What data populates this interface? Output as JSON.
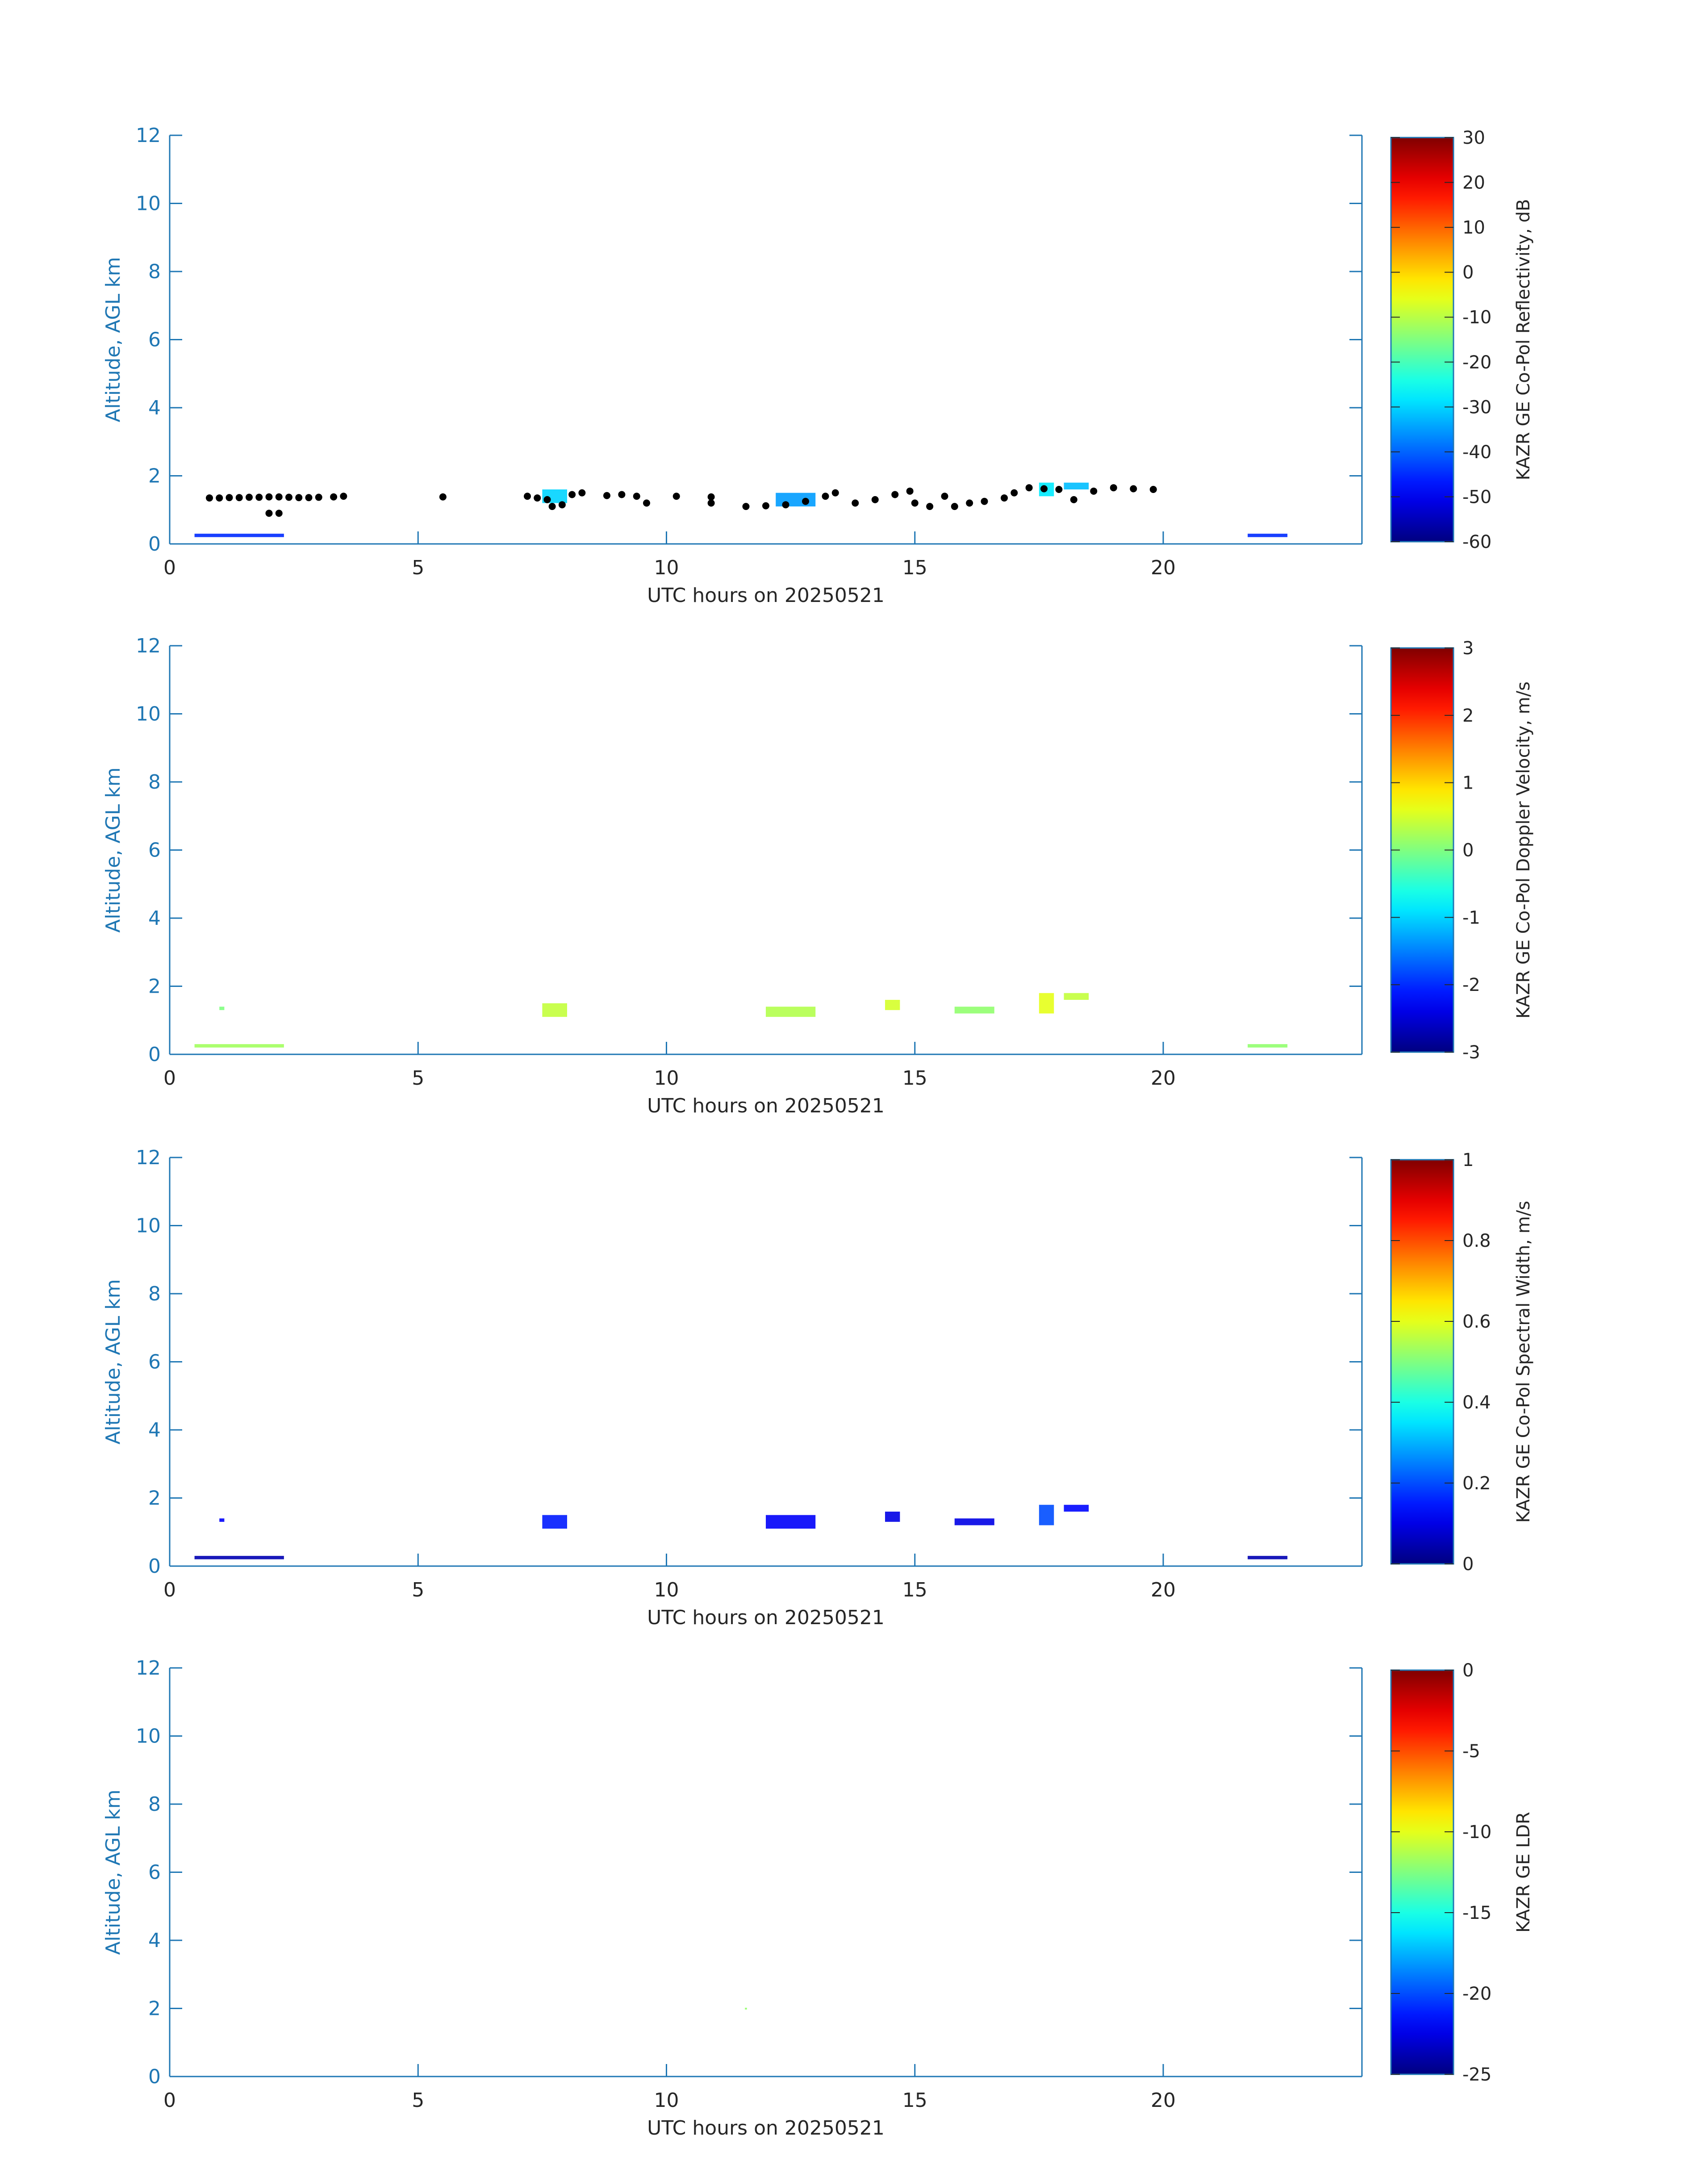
{
  "figure": {
    "xlabel": "UTC hours on 20250521",
    "ylabel": "Altitude, AGL km",
    "xlim": [
      0,
      24
    ],
    "ylim": [
      0,
      12
    ],
    "x_ticks": [
      0,
      5,
      10,
      15,
      20
    ],
    "y_ticks": [
      0,
      2,
      4,
      6,
      8,
      10,
      12
    ],
    "axis_color": "#1f77b4",
    "text_color": "#262626",
    "colormap": "jet"
  },
  "chart_data": [
    {
      "type": "heatmap",
      "xlabel": "UTC hours on 20250521",
      "ylabel": "Altitude, AGL km",
      "xlim": [
        0,
        24
      ],
      "ylim": [
        0,
        12
      ],
      "colorbar_label": "KAZR GE Co-Pol Reflectivity, dB",
      "clim": [
        -60,
        30
      ],
      "colorbar_ticks": [
        30,
        20,
        10,
        0,
        -10,
        -20,
        -30,
        -40,
        -50,
        -60
      ],
      "echoes": [
        {
          "x": [
            0.5,
            2.3
          ],
          "y": [
            0.2,
            0.3
          ],
          "value": -45
        },
        {
          "x": [
            7.5,
            8.0
          ],
          "y": [
            1.2,
            1.6
          ],
          "value": -30
        },
        {
          "x": [
            12.2,
            13.0
          ],
          "y": [
            1.1,
            1.5
          ],
          "value": -35
        },
        {
          "x": [
            17.5,
            17.8
          ],
          "y": [
            1.4,
            1.8
          ],
          "value": -28
        },
        {
          "x": [
            18.0,
            18.5
          ],
          "y": [
            1.6,
            1.8
          ],
          "value": -32
        },
        {
          "x": [
            21.7,
            22.5
          ],
          "y": [
            0.2,
            0.3
          ],
          "value": -45
        }
      ],
      "cloud_base_points": [
        [
          0.8,
          1.35
        ],
        [
          1.0,
          1.35
        ],
        [
          1.2,
          1.36
        ],
        [
          1.4,
          1.36
        ],
        [
          1.6,
          1.37
        ],
        [
          1.8,
          1.37
        ],
        [
          2.0,
          1.38
        ],
        [
          2.2,
          1.38
        ],
        [
          2.4,
          1.37
        ],
        [
          2.6,
          1.36
        ],
        [
          2.8,
          1.36
        ],
        [
          3.0,
          1.37
        ],
        [
          3.3,
          1.38
        ],
        [
          3.5,
          1.4
        ],
        [
          2.0,
          0.9
        ],
        [
          2.2,
          0.9
        ],
        [
          5.5,
          1.38
        ],
        [
          7.2,
          1.4
        ],
        [
          7.4,
          1.35
        ],
        [
          7.6,
          1.3
        ],
        [
          7.7,
          1.1
        ],
        [
          7.9,
          1.15
        ],
        [
          8.1,
          1.45
        ],
        [
          8.3,
          1.5
        ],
        [
          8.8,
          1.42
        ],
        [
          9.1,
          1.45
        ],
        [
          9.4,
          1.4
        ],
        [
          9.6,
          1.2
        ],
        [
          10.2,
          1.4
        ],
        [
          10.9,
          1.38
        ],
        [
          10.9,
          1.2
        ],
        [
          11.6,
          1.1
        ],
        [
          12.0,
          1.12
        ],
        [
          12.4,
          1.15
        ],
        [
          12.8,
          1.25
        ],
        [
          13.2,
          1.4
        ],
        [
          13.4,
          1.5
        ],
        [
          13.8,
          1.2
        ],
        [
          14.2,
          1.3
        ],
        [
          14.6,
          1.45
        ],
        [
          14.9,
          1.55
        ],
        [
          15.0,
          1.2
        ],
        [
          15.3,
          1.1
        ],
        [
          15.6,
          1.4
        ],
        [
          15.8,
          1.1
        ],
        [
          16.1,
          1.2
        ],
        [
          16.4,
          1.25
        ],
        [
          16.8,
          1.35
        ],
        [
          17.0,
          1.5
        ],
        [
          17.3,
          1.65
        ],
        [
          17.6,
          1.62
        ],
        [
          17.9,
          1.6
        ],
        [
          18.2,
          1.3
        ],
        [
          18.6,
          1.55
        ],
        [
          19.0,
          1.65
        ],
        [
          19.4,
          1.62
        ],
        [
          19.8,
          1.6
        ]
      ]
    },
    {
      "type": "heatmap",
      "xlabel": "UTC hours on 20250521",
      "ylabel": "Altitude, AGL km",
      "xlim": [
        0,
        24
      ],
      "ylim": [
        0,
        12
      ],
      "colorbar_label": "KAZR GE Co-Pol Doppler Velocity, m/s",
      "clim": [
        -3,
        3
      ],
      "colorbar_ticks": [
        3,
        2,
        1,
        0,
        -1,
        -2,
        -3
      ],
      "echoes": [
        {
          "x": [
            0.5,
            2.3
          ],
          "y": [
            0.2,
            0.3
          ],
          "value": 0.2
        },
        {
          "x": [
            1.0,
            1.1
          ],
          "y": [
            1.3,
            1.4
          ],
          "value": 0.0
        },
        {
          "x": [
            7.5,
            8.0
          ],
          "y": [
            1.1,
            1.5
          ],
          "value": 0.4
        },
        {
          "x": [
            12.0,
            13.0
          ],
          "y": [
            1.1,
            1.4
          ],
          "value": 0.3
        },
        {
          "x": [
            14.4,
            14.7
          ],
          "y": [
            1.3,
            1.6
          ],
          "value": 0.5
        },
        {
          "x": [
            15.8,
            16.6
          ],
          "y": [
            1.2,
            1.4
          ],
          "value": 0.1
        },
        {
          "x": [
            17.5,
            17.8
          ],
          "y": [
            1.2,
            1.8
          ],
          "value": 0.6
        },
        {
          "x": [
            18.0,
            18.5
          ],
          "y": [
            1.6,
            1.8
          ],
          "value": 0.4
        },
        {
          "x": [
            21.7,
            22.5
          ],
          "y": [
            0.2,
            0.3
          ],
          "value": 0.1
        }
      ]
    },
    {
      "type": "heatmap",
      "xlabel": "UTC hours on 20250521",
      "ylabel": "Altitude, AGL km",
      "xlim": [
        0,
        24
      ],
      "ylim": [
        0,
        12
      ],
      "colorbar_label": "KAZR GE Co-Pol Spectral Width, m/s",
      "clim": [
        0,
        1
      ],
      "colorbar_ticks": [
        1,
        0.8,
        0.6,
        0.4,
        0.2,
        0
      ],
      "echoes": [
        {
          "x": [
            0.5,
            2.3
          ],
          "y": [
            0.2,
            0.3
          ],
          "value": 0.05
        },
        {
          "x": [
            1.0,
            1.1
          ],
          "y": [
            1.3,
            1.4
          ],
          "value": 0.12
        },
        {
          "x": [
            7.5,
            8.0
          ],
          "y": [
            1.1,
            1.5
          ],
          "value": 0.15
        },
        {
          "x": [
            12.0,
            13.0
          ],
          "y": [
            1.1,
            1.5
          ],
          "value": 0.12
        },
        {
          "x": [
            14.4,
            14.7
          ],
          "y": [
            1.3,
            1.6
          ],
          "value": 0.1
        },
        {
          "x": [
            15.8,
            16.6
          ],
          "y": [
            1.2,
            1.4
          ],
          "value": 0.1
        },
        {
          "x": [
            17.5,
            17.8
          ],
          "y": [
            1.2,
            1.8
          ],
          "value": 0.2
        },
        {
          "x": [
            18.0,
            18.5
          ],
          "y": [
            1.6,
            1.8
          ],
          "value": 0.13
        },
        {
          "x": [
            21.7,
            22.5
          ],
          "y": [
            0.2,
            0.3
          ],
          "value": 0.05
        }
      ]
    },
    {
      "type": "heatmap",
      "xlabel": "UTC hours on 20250521",
      "ylabel": "Altitude, AGL km",
      "xlim": [
        0,
        24
      ],
      "ylim": [
        0,
        12
      ],
      "colorbar_label": "KAZR GE LDR",
      "clim": [
        -25,
        0
      ],
      "colorbar_ticks": [
        0,
        -5,
        -10,
        -15,
        -20,
        -25
      ],
      "echoes": [
        {
          "x": [
            11.58,
            11.62
          ],
          "y": [
            1.98,
            2.02
          ],
          "value": -12
        }
      ]
    }
  ]
}
